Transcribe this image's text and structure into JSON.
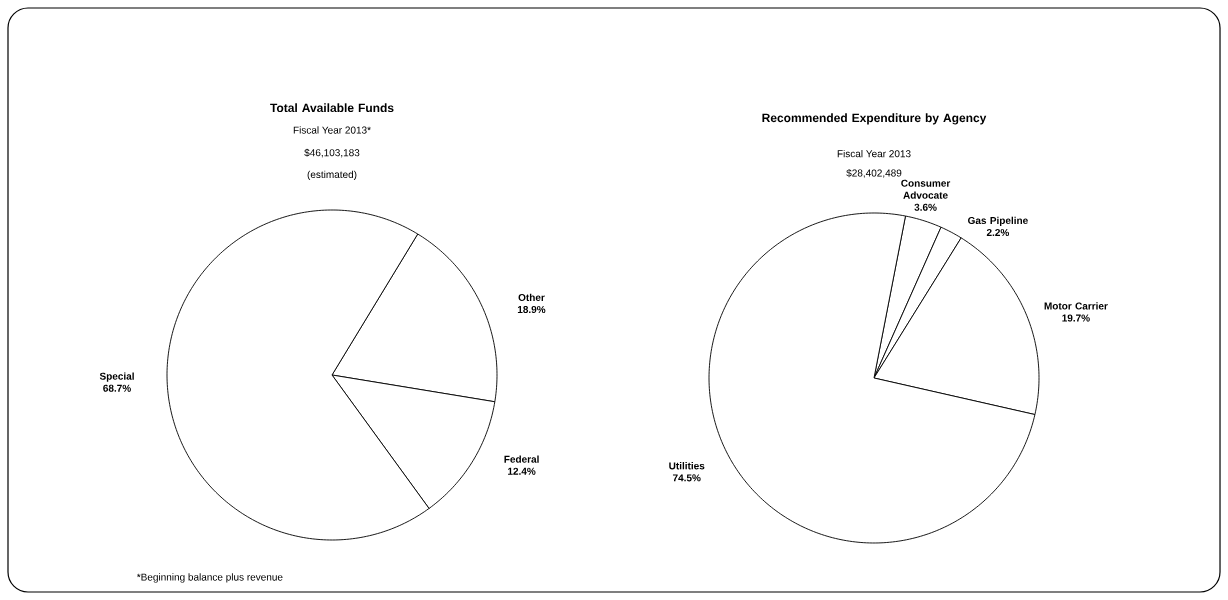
{
  "chart_data": [
    {
      "type": "pie",
      "title": "Total Available Funds",
      "subtitle": "Fiscal Year 2013*",
      "annotations": [
        "$46,103,183",
        "(estimated)",
        "*Beginning balance plus revenue"
      ],
      "categories": [
        "Other",
        "Federal",
        "Special"
      ],
      "values": [
        18.9,
        12.4,
        68.7
      ],
      "value_labels": [
        "18.9%",
        "12.4%",
        "68.7%"
      ],
      "colors": [
        "#ffffff",
        "#ffffff",
        "#ffffff"
      ]
    },
    {
      "type": "pie",
      "title": "Recommended Expenditure by Agency",
      "subtitle": "Fiscal Year 2013",
      "annotations": [
        "$28,402,489"
      ],
      "categories": [
        "Consumer Advocate",
        "Gas Pipeline",
        "Motor Carrier",
        "Utilities"
      ],
      "values": [
        3.6,
        2.2,
        19.7,
        74.5
      ],
      "value_labels": [
        "3.6%",
        "2.2%",
        "19.7%",
        "74.5%"
      ],
      "colors": [
        "#ffffff",
        "#ffffff",
        "#ffffff",
        "#ffffff"
      ]
    }
  ]
}
